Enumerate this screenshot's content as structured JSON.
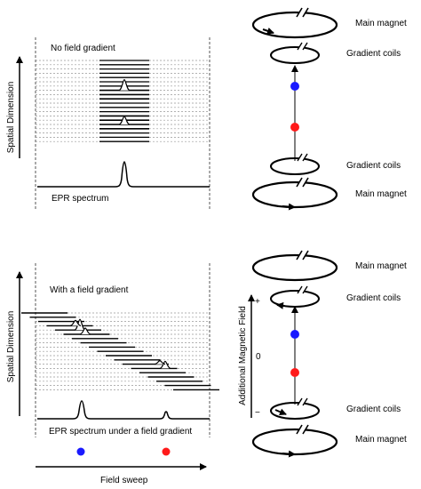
{
  "top_panel": {
    "title": "No field gradient",
    "spectrum_label": "EPR spectrum",
    "y_axis_label": "Spatial Dimension"
  },
  "bottom_panel": {
    "title": "With a field gradient",
    "spectrum_label": "EPR spectrum under a field gradient",
    "y_axis_label": "Spatial Dimension",
    "x_axis_label": "Field sweep"
  },
  "top_magnet": {
    "main_top": "Main magnet",
    "gradient_top": "Gradient coils",
    "gradient_bottom": "Gradient coils",
    "main_bottom": "Main magnet"
  },
  "bottom_magnet": {
    "main_top": "Main magnet",
    "gradient_top": "Gradient coils",
    "gradient_bottom": "Gradient coils",
    "main_bottom": "Main magnet",
    "axis_label": "Additional Magnetic Field",
    "plus": "+",
    "zero": "0",
    "minus": "−"
  },
  "colors": {
    "sample_blue": "#1a1aff",
    "sample_red": "#ff1a1a",
    "line": "#000000",
    "dashed_row": "#999999"
  }
}
